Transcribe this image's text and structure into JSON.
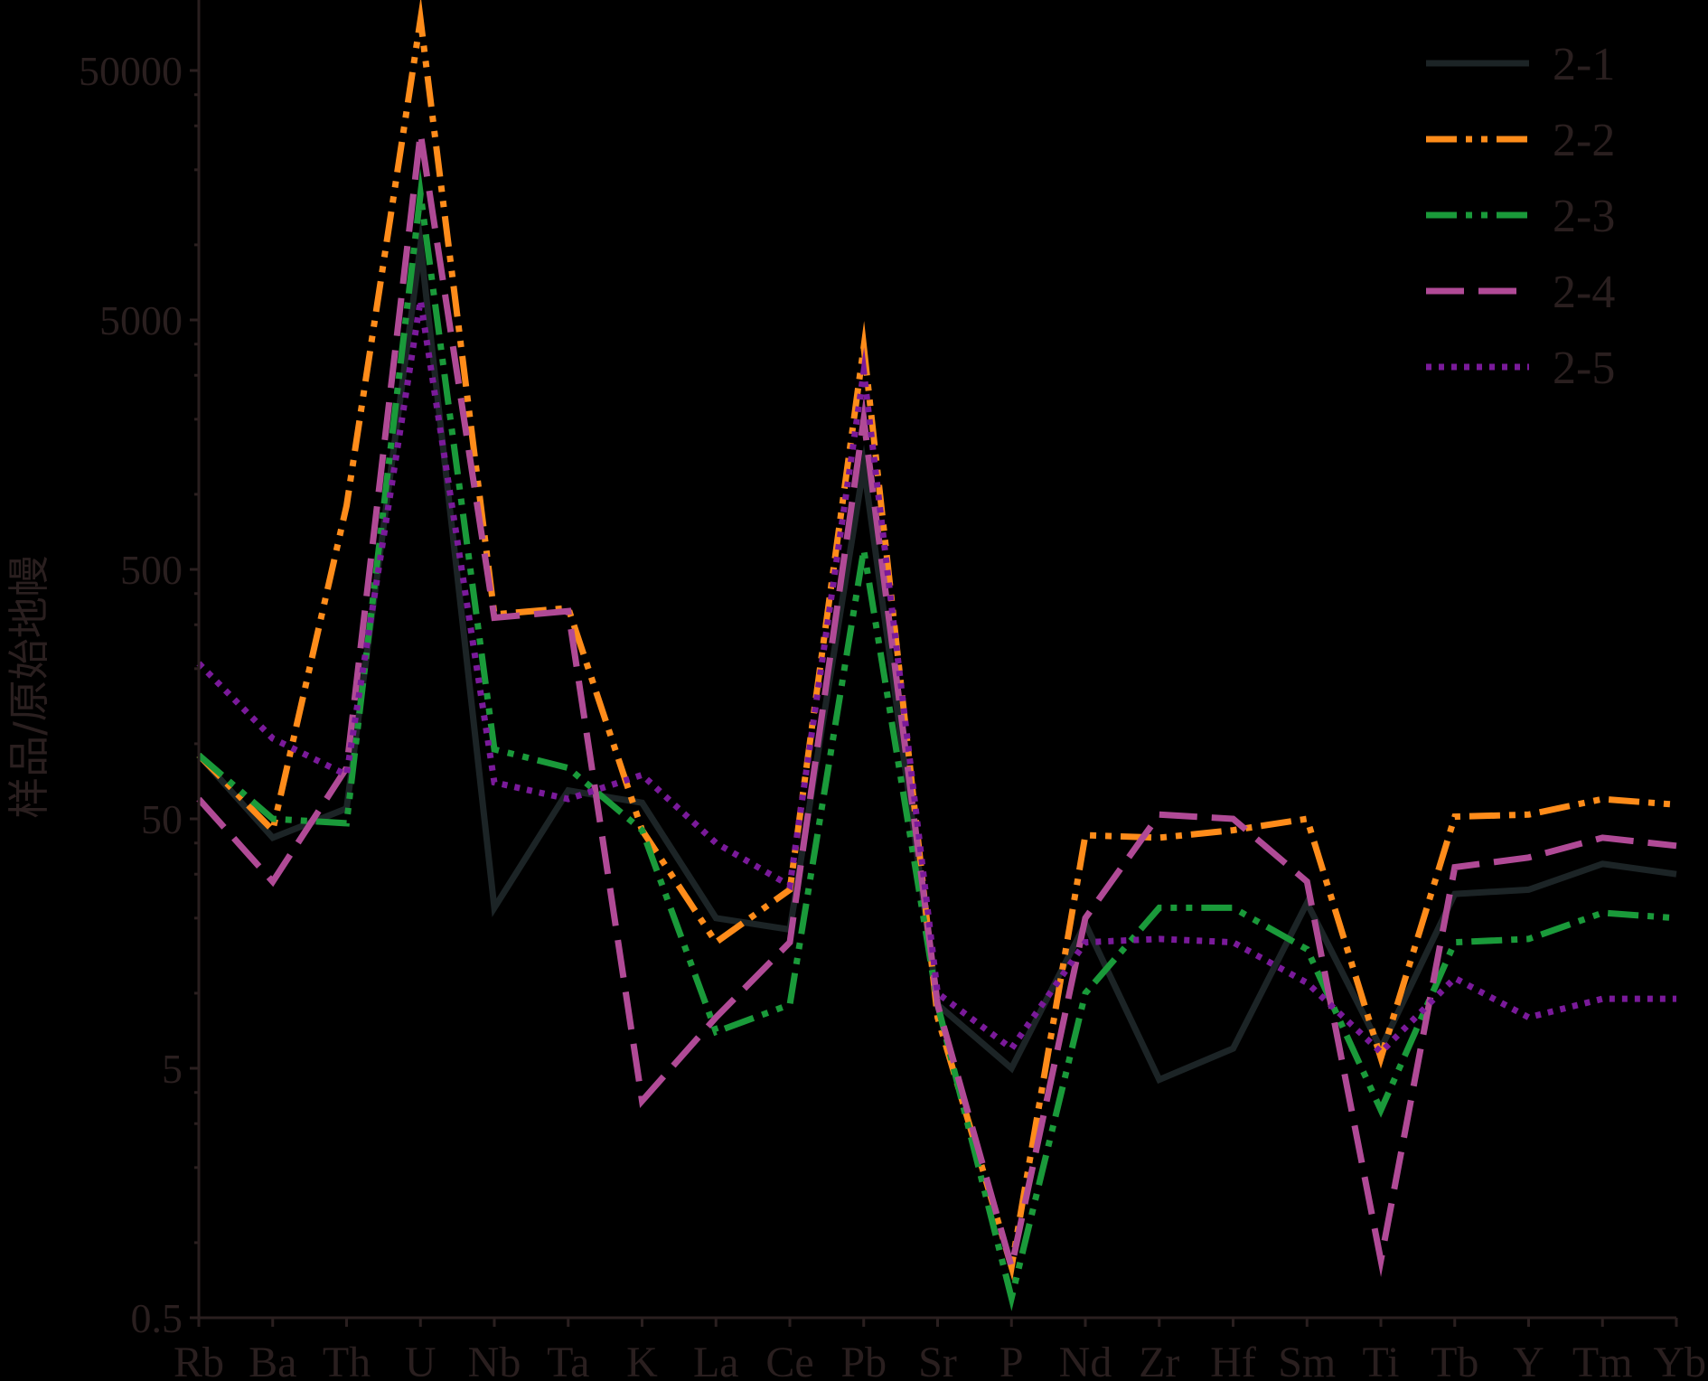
{
  "chart_data": {
    "type": "line",
    "title": "",
    "xlabel": "",
    "ylabel": "样品/原始地幔",
    "yscale": "log",
    "ylim": [
      0.5,
      100000
    ],
    "yticks": [
      "0.5",
      "5",
      "50",
      "500",
      "5000",
      "50000"
    ],
    "yticks_values": [
      0.5,
      5,
      50,
      500,
      5000,
      50000
    ],
    "categories": [
      "Rb",
      "Ba",
      "Th",
      "U",
      "Nb",
      "Ta",
      "K",
      "La",
      "Ce",
      "Pb",
      "Sr",
      "P",
      "Nd",
      "Zr",
      "Hf",
      "Sm",
      "Ti",
      "Tb",
      "Y",
      "Tm",
      "Yb"
    ],
    "legend_position": "top-right",
    "series": [
      {
        "name": "2-1",
        "color": "#1c2426",
        "dash": "solid",
        "values": [
          90,
          42,
          55,
          10000,
          22,
          65,
          58,
          20,
          18,
          1300,
          9,
          5,
          19,
          4.5,
          6,
          23,
          6,
          25,
          26,
          33,
          30
        ]
      },
      {
        "name": "2-2",
        "color": "#ff8c1a",
        "dash": "dashdotdot",
        "values": [
          90,
          45,
          900,
          80000,
          330,
          350,
          45,
          16,
          26,
          3900,
          8,
          0.8,
          43,
          42,
          45,
          50,
          5.5,
          51,
          52,
          60,
          57
        ]
      },
      {
        "name": "2-3",
        "color": "#1a9a3a",
        "dash": "dashdotdot",
        "values": [
          90,
          50,
          48,
          16000,
          95,
          80,
          45,
          7,
          9,
          600,
          9,
          0.6,
          10,
          22,
          22,
          15,
          3.4,
          16,
          16.5,
          21,
          20
        ]
      },
      {
        "name": "2-4",
        "color": "#b04a96",
        "dash": "dash",
        "values": [
          60,
          28,
          80,
          28000,
          320,
          340,
          3.7,
          8,
          16,
          2000,
          9,
          0.8,
          20,
          52,
          50,
          28,
          0.85,
          32,
          35,
          42,
          39
        ]
      },
      {
        "name": "2-5",
        "color": "#7a1a9a",
        "dash": "dot",
        "values": [
          210,
          105,
          75,
          6000,
          70,
          60,
          75,
          40,
          27,
          3100,
          10,
          6,
          16,
          16.5,
          16,
          11,
          5.8,
          11.5,
          8,
          9.5,
          9.5
        ]
      }
    ]
  }
}
